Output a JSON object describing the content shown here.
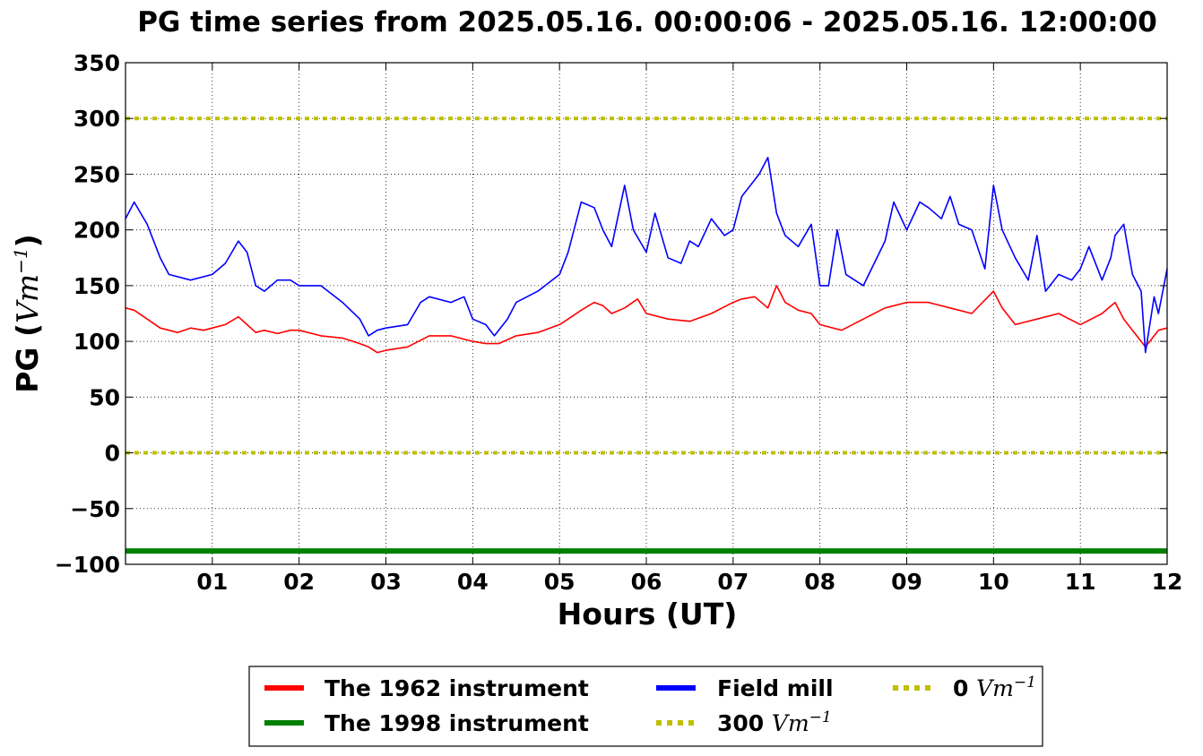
{
  "chart_data": {
    "type": "line",
    "title": "PG time series from 2025.05.16. 00:00:06 - 2025.05.16. 12:00:00",
    "xlabel": "Hours (UT)",
    "ylabel_prefix": "PG (",
    "ylabel_unit": "Vm",
    "ylabel_exp": "−1",
    "ylabel_suffix": ")",
    "xlim": [
      0,
      12
    ],
    "ylim": [
      -100,
      350
    ],
    "grid": true,
    "legend_position": "bottom-center",
    "x_ticks": [
      1,
      2,
      3,
      4,
      5,
      6,
      7,
      8,
      9,
      10,
      11,
      12
    ],
    "x_tick_labels": [
      "01",
      "02",
      "03",
      "04",
      "05",
      "06",
      "07",
      "08",
      "09",
      "10",
      "11",
      "12"
    ],
    "y_ticks": [
      -100,
      -50,
      0,
      50,
      100,
      150,
      200,
      250,
      300,
      350
    ],
    "y_tick_labels": [
      "−100",
      "−50",
      "0",
      "50",
      "100",
      "150",
      "200",
      "250",
      "300",
      "350"
    ],
    "series": [
      {
        "name": "The 1962 instrument",
        "color": "#ff0000",
        "style": "solid",
        "x": [
          0,
          0.1,
          0.25,
          0.4,
          0.5,
          0.6,
          0.75,
          0.9,
          1.0,
          1.15,
          1.3,
          1.4,
          1.5,
          1.6,
          1.75,
          1.9,
          2.0,
          2.25,
          2.5,
          2.7,
          2.8,
          2.9,
          3.0,
          3.25,
          3.5,
          3.75,
          4.0,
          4.15,
          4.3,
          4.5,
          4.75,
          5.0,
          5.1,
          5.25,
          5.4,
          5.5,
          5.6,
          5.75,
          5.9,
          6.0,
          6.25,
          6.5,
          6.75,
          7.0,
          7.1,
          7.25,
          7.4,
          7.5,
          7.6,
          7.75,
          7.9,
          8.0,
          8.25,
          8.5,
          8.75,
          9.0,
          9.25,
          9.5,
          9.75,
          10.0,
          10.1,
          10.25,
          10.5,
          10.75,
          11.0,
          11.25,
          11.4,
          11.5,
          11.6,
          11.75,
          11.9,
          12.0
        ],
        "y": [
          130,
          128,
          120,
          112,
          110,
          108,
          112,
          110,
          112,
          115,
          122,
          115,
          108,
          110,
          107,
          110,
          110,
          105,
          103,
          98,
          95,
          90,
          92,
          95,
          105,
          105,
          100,
          98,
          98,
          105,
          108,
          115,
          120,
          128,
          135,
          132,
          125,
          130,
          138,
          125,
          120,
          118,
          125,
          135,
          138,
          140,
          130,
          150,
          135,
          128,
          125,
          115,
          110,
          120,
          130,
          135,
          135,
          130,
          125,
          145,
          130,
          115,
          120,
          125,
          115,
          125,
          135,
          120,
          110,
          95,
          110,
          112
        ]
      },
      {
        "name": "The 1998 instrument",
        "color": "#008000",
        "style": "solid",
        "x": [
          0,
          12
        ],
        "y": [
          -88,
          -88
        ]
      },
      {
        "name": "Field mill",
        "color": "#0000ff",
        "style": "solid",
        "x": [
          0,
          0.1,
          0.25,
          0.4,
          0.5,
          0.75,
          1.0,
          1.15,
          1.3,
          1.4,
          1.5,
          1.6,
          1.75,
          1.9,
          2.0,
          2.25,
          2.5,
          2.7,
          2.8,
          2.9,
          3.0,
          3.25,
          3.4,
          3.5,
          3.75,
          3.9,
          4.0,
          4.15,
          4.25,
          4.4,
          4.5,
          4.75,
          5.0,
          5.1,
          5.25,
          5.4,
          5.5,
          5.6,
          5.75,
          5.85,
          6.0,
          6.1,
          6.25,
          6.4,
          6.5,
          6.6,
          6.75,
          6.9,
          7.0,
          7.1,
          7.2,
          7.3,
          7.4,
          7.5,
          7.6,
          7.75,
          7.9,
          8.0,
          8.1,
          8.2,
          8.3,
          8.5,
          8.75,
          8.85,
          9.0,
          9.15,
          9.25,
          9.4,
          9.5,
          9.6,
          9.75,
          9.9,
          10.0,
          10.1,
          10.25,
          10.4,
          10.5,
          10.6,
          10.75,
          10.9,
          11.0,
          11.1,
          11.25,
          11.35,
          11.4,
          11.5,
          11.6,
          11.7,
          11.75,
          11.85,
          11.9,
          12.0
        ],
        "y": [
          210,
          225,
          205,
          175,
          160,
          155,
          160,
          170,
          190,
          180,
          150,
          145,
          155,
          155,
          150,
          150,
          135,
          120,
          105,
          110,
          112,
          115,
          135,
          140,
          135,
          140,
          120,
          115,
          105,
          120,
          135,
          145,
          160,
          180,
          225,
          220,
          200,
          185,
          240,
          200,
          180,
          215,
          175,
          170,
          190,
          185,
          210,
          195,
          200,
          230,
          240,
          250,
          265,
          215,
          195,
          185,
          205,
          150,
          150,
          200,
          160,
          150,
          190,
          225,
          200,
          225,
          220,
          210,
          230,
          205,
          200,
          165,
          240,
          200,
          175,
          155,
          195,
          145,
          160,
          155,
          165,
          185,
          155,
          175,
          195,
          205,
          160,
          145,
          90,
          140,
          125,
          165
        ]
      }
    ],
    "reference_lines": [
      {
        "name": "300",
        "unit": "Vm",
        "exp": "−1",
        "y": 300,
        "color": "#bfbf00",
        "style": "dotted"
      },
      {
        "name": "0",
        "unit": "Vm",
        "exp": "−1",
        "y": 0,
        "color": "#bfbf00",
        "style": "dotted"
      }
    ]
  }
}
